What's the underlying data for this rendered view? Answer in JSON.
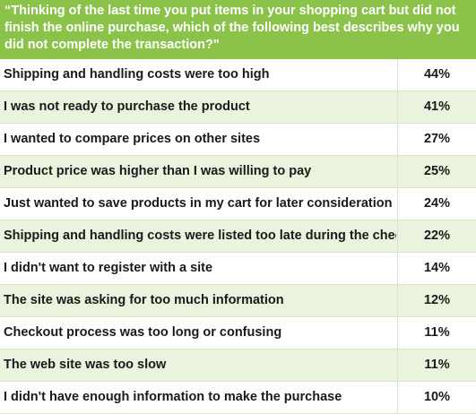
{
  "header": {
    "question": "“Thinking of the last time you put items in your shopping cart but did not finish the online purchase, which of the following best describes why you did not complete the transaction?\""
  },
  "colors": {
    "header_bg": "#8bc34a",
    "header_text": "#ffffff",
    "row_alt_bg": "#eaf3dd",
    "row_bg": "#ffffff",
    "text": "#1a1a1a"
  },
  "chart_data": {
    "type": "table",
    "title": "“Thinking of the last time you put items in your shopping cart but did not finish the online purchase, which of the following best describes why you did not complete the transaction?\"",
    "categories": [
      "Shipping and handling costs were too high",
      "I was not ready to purchase the product",
      "I wanted to compare prices on other sites",
      "Product price was higher than I was willing to pay",
      "Just wanted to save products in my cart for later consideration",
      "Shipping and handling costs were listed too late during the checkout process",
      "I didn't want to register with a site",
      "The site was asking for too much information",
      "Checkout process was too long or confusing",
      "The web site was too slow",
      "I didn't have enough information to make the purchase"
    ],
    "values": [
      44,
      41,
      27,
      25,
      24,
      22,
      14,
      12,
      11,
      11,
      10
    ],
    "value_labels": [
      "44%",
      "41%",
      "27%",
      "25%",
      "24%",
      "22%",
      "14%",
      "12%",
      "11%",
      "11%",
      "10%"
    ],
    "unit": "%"
  }
}
